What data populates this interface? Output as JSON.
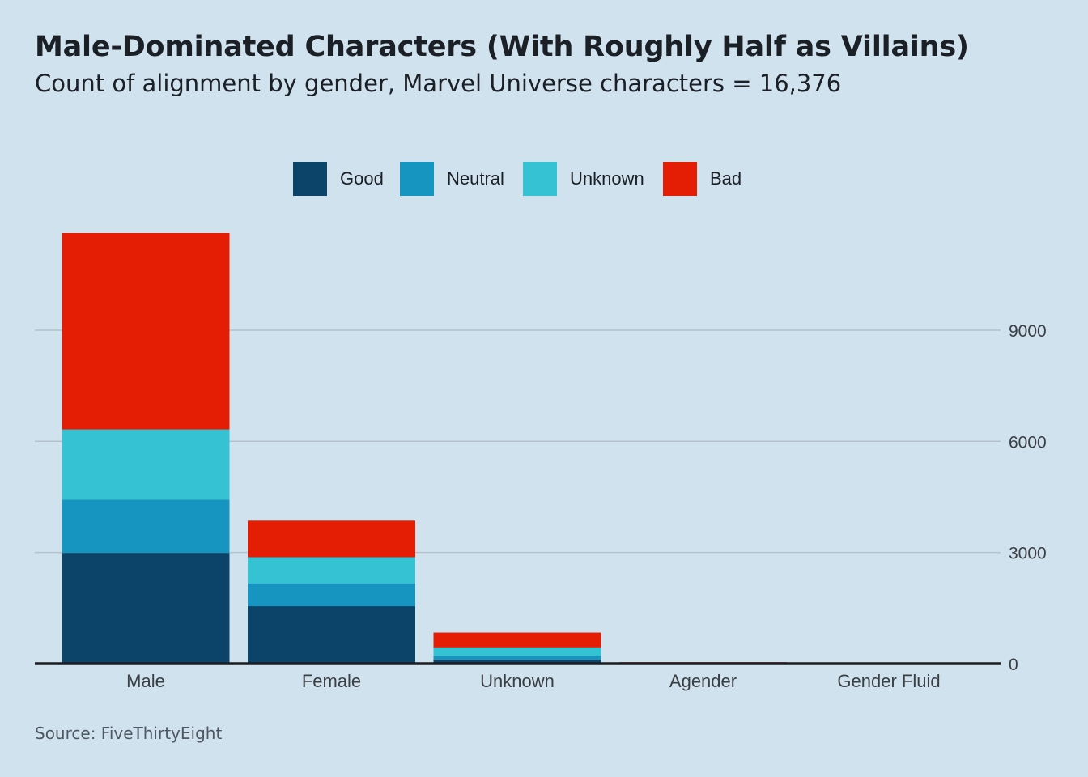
{
  "header": {
    "title": "Male-Dominated Characters (With Roughly Half as Villains)",
    "subtitle": "Count of alignment by gender, Marvel Universe characters = 16,376"
  },
  "footer": {
    "source": "Source: FiveThirtyEight"
  },
  "chart_data": {
    "type": "bar",
    "stacked": true,
    "categories": [
      "Male",
      "Female",
      "Unknown",
      "Agender",
      "Gender Fluid"
    ],
    "series": [
      {
        "name": "Good",
        "color": "#0b4468",
        "values": [
          2990,
          1550,
          110,
          10,
          1
        ]
      },
      {
        "name": "Neutral",
        "color": "#1595bf",
        "values": [
          1440,
          620,
          100,
          10,
          1
        ]
      },
      {
        "name": "Unknown",
        "color": "#35c2d3",
        "values": [
          1890,
          700,
          230,
          10,
          0
        ]
      },
      {
        "name": "Bad",
        "color": "#e31e05",
        "values": [
          5300,
          990,
          400,
          10,
          0
        ]
      }
    ],
    "ylim": [
      0,
      11620
    ],
    "yticks": [
      "0",
      "3000",
      "6000",
      "9000"
    ],
    "ytick_values": [
      0,
      3000,
      6000,
      9000
    ],
    "y_axis_side": "right",
    "grid": true,
    "legend_position": "top-center"
  }
}
